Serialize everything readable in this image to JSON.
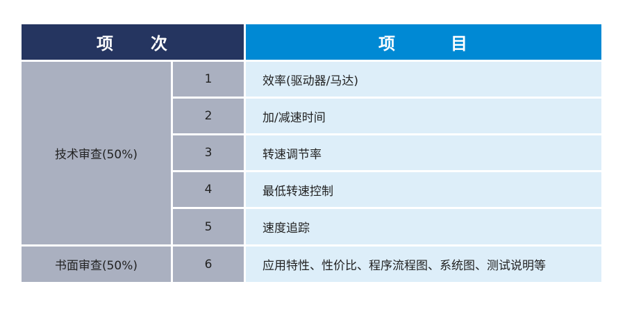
{
  "header": {
    "col_item_no": "项　　次",
    "col_item": "项　　　目"
  },
  "colors": {
    "header_left": "#253560",
    "header_right": "#0089d4",
    "category_cell": "#aab0c0",
    "item_cell": "#ddeef9"
  },
  "groups": [
    {
      "label": "技术审查(50%)",
      "rows": [
        {
          "no": "1",
          "item": "效率(驱动器/马达)"
        },
        {
          "no": "2",
          "item": "加/减速时间"
        },
        {
          "no": "3",
          "item": "转速调节率"
        },
        {
          "no": "4",
          "item": "最低转速控制"
        },
        {
          "no": "5",
          "item": "速度追踪"
        }
      ]
    },
    {
      "label": "书面审查(50%)",
      "rows": [
        {
          "no": "6",
          "item": "应用特性、性价比、程序流程图、系统图、测试说明等"
        }
      ]
    }
  ]
}
